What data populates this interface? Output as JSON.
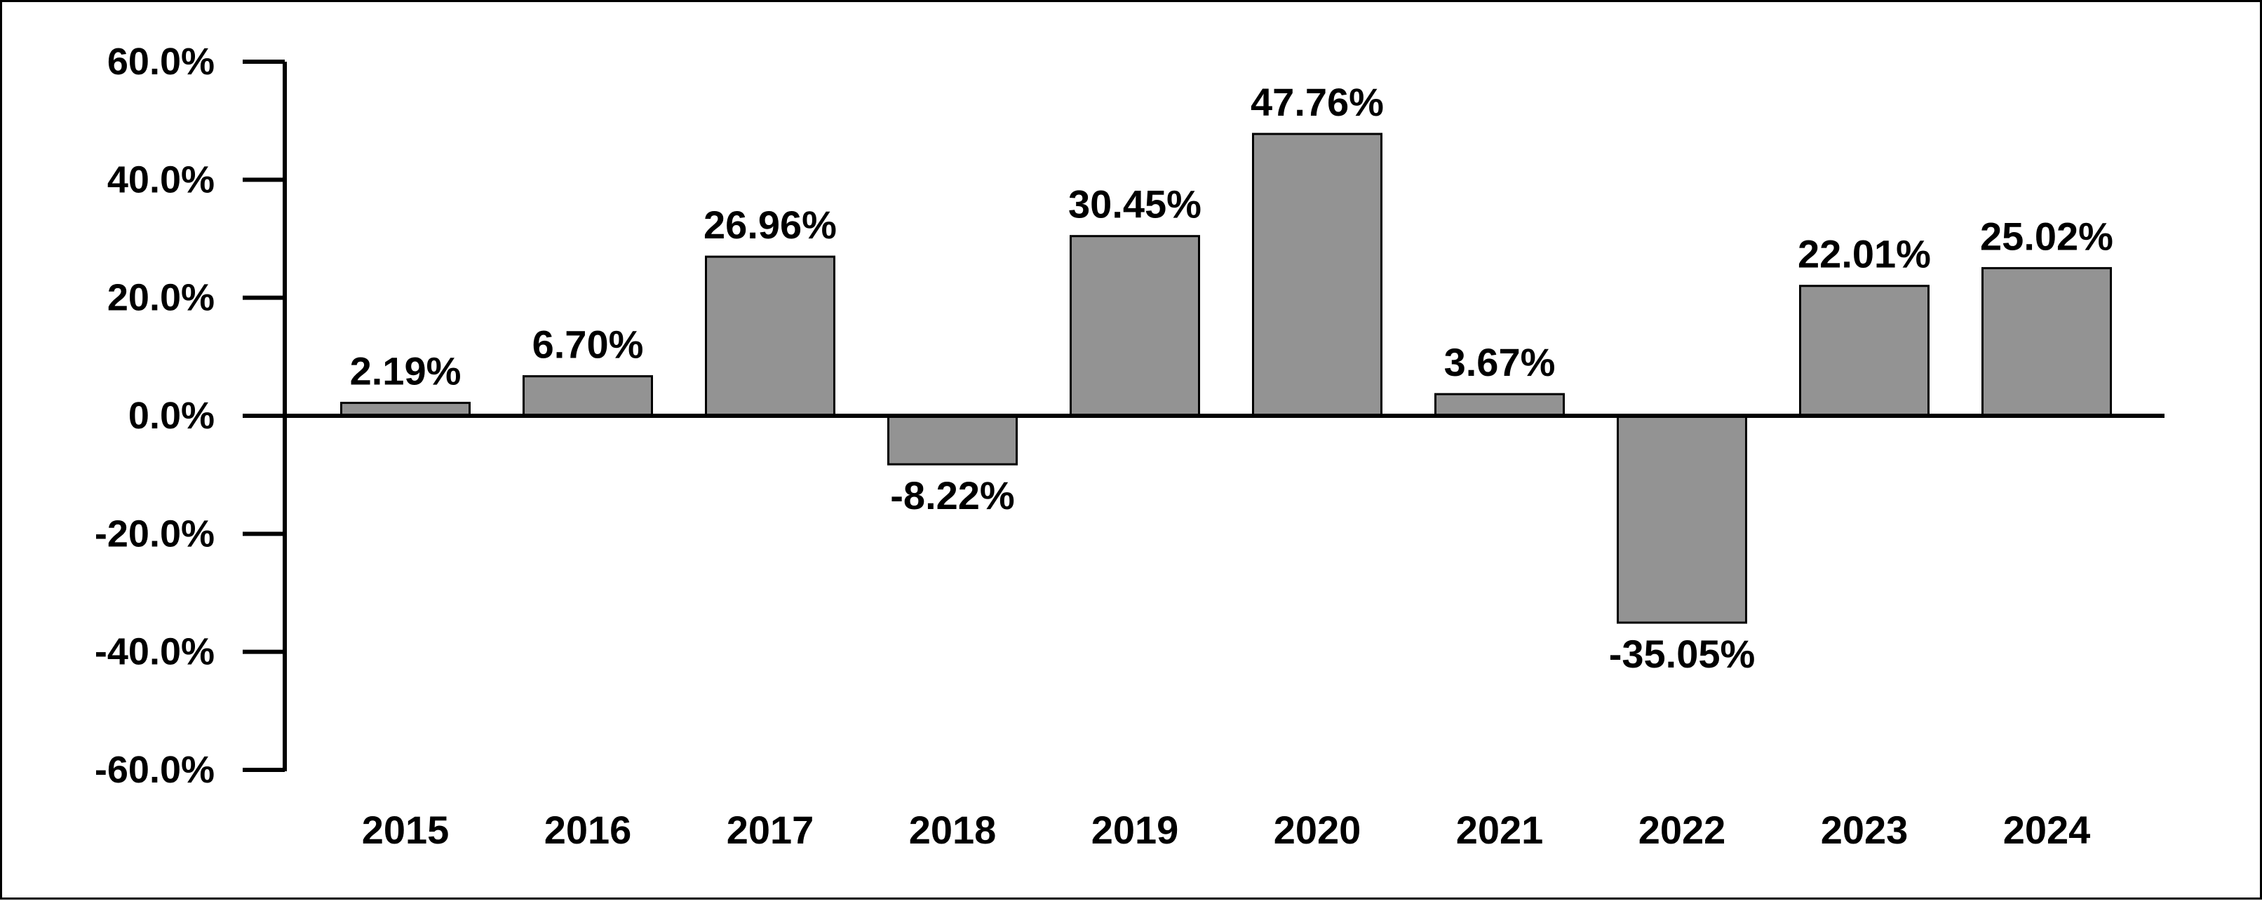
{
  "chart_data": {
    "type": "bar",
    "title": "",
    "xlabel": "",
    "ylabel": "",
    "categories": [
      "2015",
      "2016",
      "2017",
      "2018",
      "2019",
      "2020",
      "2021",
      "2022",
      "2023",
      "2024"
    ],
    "values": [
      2.19,
      6.7,
      26.96,
      -8.22,
      30.45,
      47.76,
      3.67,
      -35.05,
      22.01,
      25.02
    ],
    "value_labels": [
      "2.19%",
      "6.70%",
      "26.96%",
      "-8.22%",
      "30.45%",
      "47.76%",
      "3.67%",
      "-35.05%",
      "22.01%",
      "25.02%"
    ],
    "ylim": [
      -60,
      60
    ],
    "yticks": [
      60,
      40,
      20,
      0,
      -20,
      -40,
      -60
    ],
    "ytick_labels": [
      "60.0%",
      "40.0%",
      "20.0%",
      "0.0%",
      "-20.0%",
      "-40.0%",
      "-60.0%"
    ],
    "grid": false,
    "legend": "none",
    "bar_color": "#939393",
    "bar_edge_color": "#000000",
    "axis_color": "#000000"
  }
}
